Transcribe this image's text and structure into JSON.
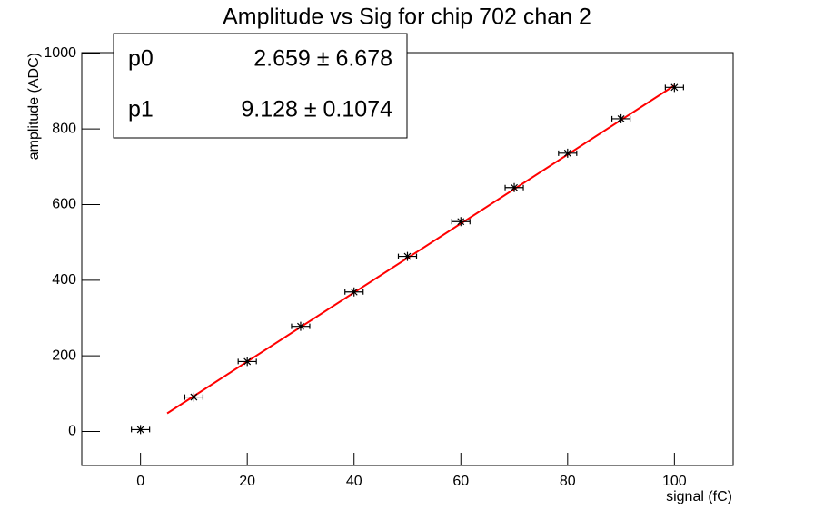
{
  "chart_data": {
    "type": "scatter",
    "title": "Amplitude vs Sig for chip 702 chan 2",
    "xlabel": "signal (fC)",
    "ylabel": "amplitude (ADC)",
    "x": [
      0,
      10,
      20,
      30,
      40,
      50,
      60,
      70,
      80,
      90,
      100
    ],
    "series": [
      {
        "color": "#000000",
        "values": [
          5,
          91,
          185,
          278,
          369,
          463,
          555,
          645,
          736,
          827,
          910
        ]
      }
    ],
    "fit": {
      "color": "#ff0000",
      "x": [
        5,
        100
      ],
      "y": [
        48,
        915
      ]
    },
    "stats": {
      "rows": [
        [
          "p0",
          "2.659 ± 6.678"
        ],
        [
          "p1",
          "9.128 ± 0.1074"
        ]
      ]
    },
    "xlim": [
      -11,
      111
    ],
    "xticks": [
      0,
      20,
      40,
      60,
      80,
      100
    ],
    "ylim": [
      -90,
      1002
    ],
    "yticks": [
      0,
      200,
      400,
      600,
      800,
      1000
    ],
    "grid": false
  }
}
